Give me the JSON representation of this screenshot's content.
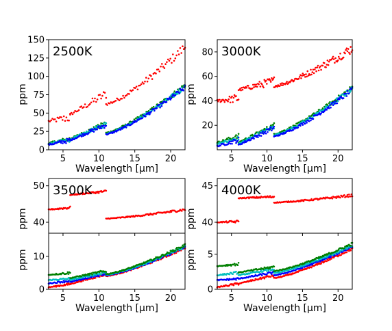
{
  "chart_data": [
    {
      "type": "scatter",
      "title": "2500K",
      "xlabel": "Wavelength [µm]",
      "ylabel": "ppm",
      "xlim": [
        3,
        22
      ],
      "ylim": [
        0,
        150
      ],
      "xticks": [
        5,
        10,
        15,
        20
      ],
      "yticks": [
        0,
        25,
        50,
        75,
        100,
        125,
        150
      ],
      "series": [
        {
          "color": "#ff0000",
          "segments": [
            {
              "x": [
                3.0,
                6.0
              ],
              "y": [
                39,
                44
              ]
            },
            {
              "x": [
                6.0,
                11.0
              ],
              "y": [
                48,
                76
              ]
            },
            {
              "x": [
                11.0,
                22.0
              ],
              "y": [
                62,
                140
              ]
            }
          ]
        },
        {
          "color": "#008000",
          "segments": [
            {
              "x": [
                3.0,
                6.0
              ],
              "y": [
                9,
                15
              ]
            },
            {
              "x": [
                6.0,
                11.0
              ],
              "y": [
                15,
                36
              ]
            },
            {
              "x": [
                11.0,
                22.0
              ],
              "y": [
                23,
                88
              ]
            }
          ]
        },
        {
          "color": "#00bfbf",
          "segments": [
            {
              "x": [
                3.0,
                6.0
              ],
              "y": [
                8,
                14
              ]
            },
            {
              "x": [
                6.0,
                11.0
              ],
              "y": [
                14,
                35
              ]
            },
            {
              "x": [
                11.0,
                22.0
              ],
              "y": [
                22,
                86
              ]
            }
          ]
        },
        {
          "color": "#0000ff",
          "segments": [
            {
              "x": [
                3.0,
                6.0
              ],
              "y": [
                7,
                13
              ]
            },
            {
              "x": [
                6.0,
                11.0
              ],
              "y": [
                13,
                34
              ]
            },
            {
              "x": [
                11.0,
                22.0
              ],
              "y": [
                21,
                85
              ]
            }
          ]
        }
      ]
    },
    {
      "type": "scatter",
      "title": "3000K",
      "xlabel": "Wavelength [µm]",
      "ylabel": "ppm",
      "xlim": [
        3,
        22
      ],
      "ylim": [
        0,
        90
      ],
      "xticks": [
        5,
        10,
        15,
        20
      ],
      "yticks": [
        20,
        40,
        60,
        80
      ],
      "series": [
        {
          "color": "#ff0000",
          "segments": [
            {
              "x": [
                3.0,
                6.0
              ],
              "y": [
                40,
                42
              ]
            },
            {
              "x": [
                6.0,
                11.0
              ],
              "y": [
                49,
                56
              ]
            },
            {
              "x": [
                11.0,
                22.0
              ],
              "y": [
                52,
                83
              ]
            }
          ]
        },
        {
          "color": "#008000",
          "segments": [
            {
              "x": [
                3.0,
                6.0
              ],
              "y": [
                6,
                11
              ]
            },
            {
              "x": [
                6.0,
                11.0
              ],
              "y": [
                6,
                20
              ]
            },
            {
              "x": [
                11.0,
                22.0
              ],
              "y": [
                13,
                51
              ]
            }
          ]
        },
        {
          "color": "#00bfbf",
          "segments": [
            {
              "x": [
                3.0,
                6.0
              ],
              "y": [
                5,
                9
              ]
            },
            {
              "x": [
                6.0,
                11.0
              ],
              "y": [
                5,
                19
              ]
            },
            {
              "x": [
                11.0,
                22.0
              ],
              "y": [
                12,
                50
              ]
            }
          ]
        },
        {
          "color": "#0000ff",
          "segments": [
            {
              "x": [
                3.0,
                6.0
              ],
              "y": [
                3,
                8
              ]
            },
            {
              "x": [
                6.0,
                11.0
              ],
              "y": [
                4,
                18
              ]
            },
            {
              "x": [
                11.0,
                22.0
              ],
              "y": [
                11,
                49
              ]
            }
          ]
        }
      ]
    },
    {
      "type": "scatter",
      "title": "3500K",
      "xlabel": "",
      "ylabel": "ppm",
      "xlim": [
        3,
        22
      ],
      "ylim": [
        37,
        52
      ],
      "xticks": [],
      "yticks": [
        40,
        50
      ],
      "series": [
        {
          "color": "#ff0000",
          "segments": [
            {
              "x": [
                3.0,
                6.0
              ],
              "y": [
                43.5,
                44.0
              ]
            },
            {
              "x": [
                6.0,
                11.0
              ],
              "y": [
                47.5,
                48.5
              ]
            },
            {
              "x": [
                11.0,
                22.0
              ],
              "y": [
                41.0,
                43.5
              ]
            }
          ]
        }
      ]
    },
    {
      "type": "scatter",
      "title": "",
      "xlabel": "Wavelength [µm]",
      "ylabel": "ppm",
      "xlim": [
        3,
        22
      ],
      "ylim": [
        0,
        17
      ],
      "xticks": [
        5,
        10,
        15,
        20
      ],
      "yticks": [
        0,
        10
      ],
      "series": [
        {
          "color": "#ff0000",
          "segments": [
            {
              "x": [
                3.0,
                6.0
              ],
              "y": [
                0.6,
                1.6
              ]
            },
            {
              "x": [
                6.0,
                11.0
              ],
              "y": [
                1.6,
                4.6
              ]
            },
            {
              "x": [
                11.0,
                22.0
              ],
              "y": [
                4.0,
                12.6
              ]
            }
          ]
        },
        {
          "color": "#0000ff",
          "segments": [
            {
              "x": [
                3.0,
                6.0
              ],
              "y": [
                1.8,
                2.6
              ]
            },
            {
              "x": [
                6.0,
                11.0
              ],
              "y": [
                2.2,
                4.8
              ]
            },
            {
              "x": [
                11.0,
                22.0
              ],
              "y": [
                4.2,
                12.8
              ]
            }
          ]
        },
        {
          "color": "#00bfbf",
          "segments": [
            {
              "x": [
                3.0,
                6.0
              ],
              "y": [
                2.8,
                3.2
              ]
            },
            {
              "x": [
                6.0,
                11.0
              ],
              "y": [
                2.8,
                5.2
              ]
            },
            {
              "x": [
                11.0,
                22.0
              ],
              "y": [
                4.4,
                13.0
              ]
            }
          ]
        },
        {
          "color": "#008000",
          "segments": [
            {
              "x": [
                3.0,
                6.0
              ],
              "y": [
                4.4,
                5.0
              ]
            },
            {
              "x": [
                6.0,
                11.0
              ],
              "y": [
                3.4,
                5.6
              ]
            },
            {
              "x": [
                11.0,
                22.0
              ],
              "y": [
                4.6,
                13.4
              ]
            }
          ]
        }
      ]
    },
    {
      "type": "scatter",
      "title": "4000K",
      "xlabel": "",
      "ylabel": "ppm",
      "xlim": [
        3,
        22
      ],
      "ylim": [
        38.5,
        46
      ],
      "xticks": [],
      "yticks": [
        40,
        45
      ],
      "series": [
        {
          "color": "#ff0000",
          "segments": [
            {
              "x": [
                3.0,
                6.0
              ],
              "y": [
                40.0,
                40.1
              ]
            },
            {
              "x": [
                6.0,
                11.0
              ],
              "y": [
                43.3,
                43.5
              ]
            },
            {
              "x": [
                11.0,
                22.0
              ],
              "y": [
                42.7,
                43.7
              ]
            }
          ]
        }
      ]
    },
    {
      "type": "scatter",
      "title": "",
      "xlabel": "Wavelength [µm]",
      "ylabel": "ppm",
      "xlim": [
        3,
        22
      ],
      "ylim": [
        0,
        8
      ],
      "xticks": [
        5,
        10,
        15,
        20
      ],
      "yticks": [
        0,
        5
      ],
      "series": [
        {
          "color": "#ff0000",
          "segments": [
            {
              "x": [
                3.0,
                6.0
              ],
              "y": [
                0.3,
                0.8
              ]
            },
            {
              "x": [
                6.0,
                11.0
              ],
              "y": [
                0.8,
                2.0
              ]
            },
            {
              "x": [
                11.0,
                22.0
              ],
              "y": [
                1.6,
                5.8
              ]
            }
          ]
        },
        {
          "color": "#0000ff",
          "segments": [
            {
              "x": [
                3.0,
                6.0
              ],
              "y": [
                1.3,
                1.5
              ]
            },
            {
              "x": [
                6.0,
                11.0
              ],
              "y": [
                1.5,
                2.4
              ]
            },
            {
              "x": [
                11.0,
                22.0
              ],
              "y": [
                2.0,
                6.1
              ]
            }
          ]
        },
        {
          "color": "#00bfbf",
          "segments": [
            {
              "x": [
                3.0,
                6.0
              ],
              "y": [
                2.0,
                2.4
              ]
            },
            {
              "x": [
                6.0,
                11.0
              ],
              "y": [
                2.0,
                2.9
              ]
            },
            {
              "x": [
                11.0,
                22.0
              ],
              "y": [
                2.3,
                6.3
              ]
            }
          ]
        },
        {
          "color": "#008000",
          "segments": [
            {
              "x": [
                3.0,
                6.0
              ],
              "y": [
                3.3,
                3.6
              ]
            },
            {
              "x": [
                6.0,
                11.0
              ],
              "y": [
                2.4,
                3.2
              ]
            },
            {
              "x": [
                11.0,
                22.0
              ],
              "y": [
                2.6,
                6.5
              ]
            }
          ]
        }
      ]
    }
  ]
}
